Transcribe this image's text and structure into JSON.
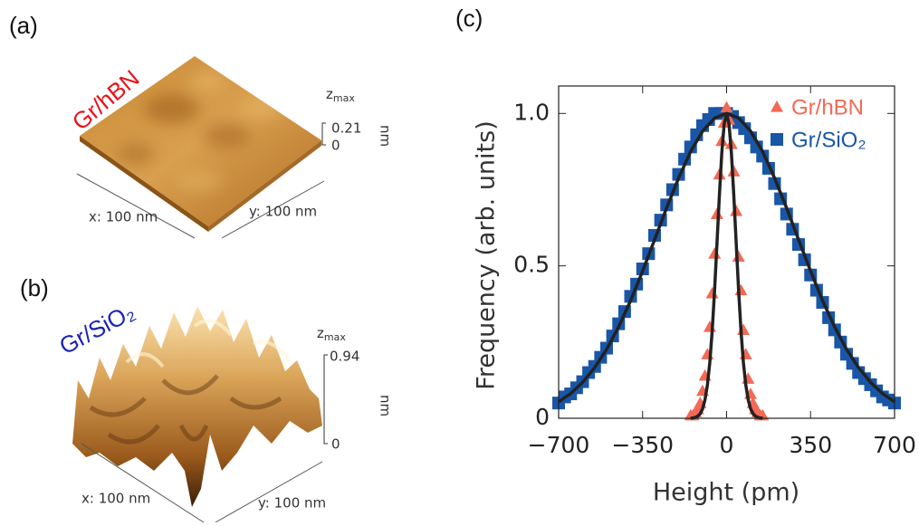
{
  "panels": [
    {
      "label": "(a)",
      "sample": "Gr/hBN",
      "z": "z",
      "z_sub": "max",
      "z_top": "0.21",
      "z_bottom": "0",
      "z_unit": "nm",
      "x_axis": "x: 100 nm",
      "y_axis": "y: 100 nm"
    },
    {
      "label": "(b)",
      "sample": "Gr/SiO₂",
      "z": "z",
      "z_sub": "max",
      "z_top": "0.94",
      "z_bottom": "0",
      "z_unit": "nm",
      "x_axis": "x: 100 nm",
      "y_axis": "y: 100 nm"
    }
  ],
  "chart_data": {
    "type": "scatter",
    "panel_label": "(c)",
    "x_label": "Height (pm)",
    "y_label": "Frequency (arb. units)",
    "xlim": [
      -700,
      700
    ],
    "ylim": [
      0,
      1.09
    ],
    "xticks": [
      {
        "value": -700,
        "label": "−700"
      },
      {
        "value": -350,
        "label": "−350"
      },
      0,
      350,
      700
    ],
    "yticks": [
      0,
      0.5,
      {
        "value": 1,
        "label": "1.0"
      }
    ],
    "grid": false,
    "legend": "upper right",
    "series": [
      {
        "name": "Gr/hBN",
        "color": "#f26a55",
        "marker": "triangle",
        "x": [
          -150,
          -140,
          -130,
          -120,
          -110,
          -100,
          -90,
          -80,
          -70,
          -60,
          -50,
          -40,
          -30,
          -20,
          -10,
          0,
          10,
          20,
          30,
          40,
          50,
          60,
          70,
          80,
          90,
          100,
          110,
          120,
          130,
          140,
          150
        ],
        "values": [
          0.01,
          0.01,
          0.02,
          0.03,
          0.05,
          0.09,
          0.14,
          0.21,
          0.3,
          0.41,
          0.54,
          0.67,
          0.8,
          0.91,
          0.97,
          1.02,
          0.98,
          0.9,
          0.81,
          0.68,
          0.53,
          0.42,
          0.29,
          0.21,
          0.13,
          0.08,
          0.05,
          0.03,
          0.02,
          0.01,
          0.01
        ]
      },
      {
        "name": "Gr/SiO₂",
        "color": "#1a56a8",
        "marker": "square",
        "x": [
          -700,
          -675,
          -650,
          -625,
          -600,
          -575,
          -550,
          -525,
          -500,
          -475,
          -450,
          -425,
          -400,
          -375,
          -350,
          -325,
          -300,
          -275,
          -250,
          -225,
          -200,
          -175,
          -150,
          -125,
          -100,
          -75,
          -50,
          -25,
          0,
          25,
          50,
          75,
          100,
          125,
          150,
          175,
          200,
          225,
          250,
          275,
          300,
          325,
          350,
          375,
          400,
          425,
          450,
          475,
          500,
          525,
          550,
          575,
          600,
          625,
          650,
          675,
          700
        ],
        "values": [
          0.05,
          0.07,
          0.08,
          0.1,
          0.12,
          0.15,
          0.17,
          0.2,
          0.23,
          0.27,
          0.31,
          0.35,
          0.4,
          0.44,
          0.49,
          0.54,
          0.6,
          0.65,
          0.7,
          0.75,
          0.8,
          0.85,
          0.89,
          0.93,
          0.96,
          0.98,
          1.0,
          1.0,
          1.0,
          0.99,
          0.97,
          0.95,
          0.92,
          0.89,
          0.86,
          0.82,
          0.77,
          0.72,
          0.67,
          0.62,
          0.57,
          0.52,
          0.47,
          0.42,
          0.38,
          0.33,
          0.29,
          0.25,
          0.21,
          0.18,
          0.15,
          0.13,
          0.11,
          0.09,
          0.07,
          0.06,
          0.05
        ]
      }
    ],
    "fits": [
      {
        "color": "#222222",
        "x": [
          -700,
          -650,
          -600,
          -550,
          -500,
          -450,
          -400,
          -350,
          -300,
          -250,
          -200,
          -150,
          -100,
          -50,
          0,
          50,
          100,
          150,
          200,
          250,
          300,
          350,
          400,
          450,
          500,
          550,
          600,
          650,
          700
        ],
        "values": [
          0.054,
          0.081,
          0.118,
          0.166,
          0.226,
          0.3,
          0.386,
          0.483,
          0.586,
          0.69,
          0.788,
          0.875,
          0.942,
          0.985,
          1,
          0.985,
          0.942,
          0.875,
          0.788,
          0.69,
          0.586,
          0.483,
          0.386,
          0.3,
          0.226,
          0.166,
          0.118,
          0.081,
          0.054
        ]
      },
      {
        "color": "#222222",
        "x": [
          -150,
          -140,
          -130,
          -120,
          -110,
          -100,
          -90,
          -80,
          -70,
          -60,
          -50,
          -40,
          -30,
          -20,
          -10,
          0,
          10,
          20,
          30,
          40,
          50,
          60,
          70,
          80,
          90,
          100,
          110,
          120,
          130,
          140,
          150
        ],
        "values": [
          0,
          0.001,
          0.003,
          0.007,
          0.015,
          0.031,
          0.061,
          0.109,
          0.183,
          0.287,
          0.421,
          0.575,
          0.732,
          0.871,
          0.966,
          1,
          0.966,
          0.871,
          0.732,
          0.575,
          0.421,
          0.287,
          0.183,
          0.109,
          0.061,
          0.031,
          0.015,
          0.007,
          0.003,
          0.001,
          0
        ]
      }
    ]
  }
}
